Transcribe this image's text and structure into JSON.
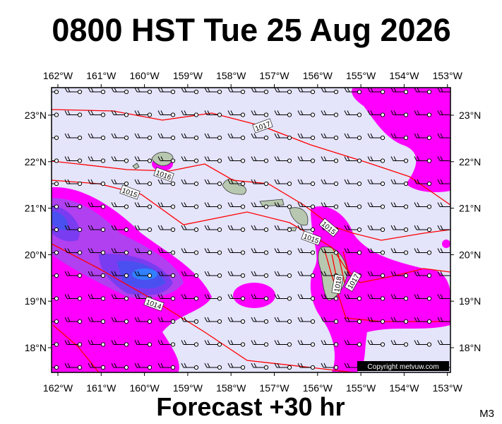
{
  "header": {
    "title": "0800 HST Tue 25 Aug 2026"
  },
  "footer": {
    "subtitle": "Forecast +30 hr",
    "code": "M3"
  },
  "map": {
    "lon_labels": [
      "162°W",
      "161°W",
      "160°W",
      "159°W",
      "158°W",
      "157°W",
      "156°W",
      "155°W",
      "154°W",
      "153°W"
    ],
    "lat_labels": [
      "23°N",
      "22°N",
      "21°N",
      "20°N",
      "19°N",
      "18°N"
    ],
    "isobar_labels": [
      "1017",
      "1016",
      "1015",
      "1015",
      "1015",
      "1018",
      "1017",
      "1014"
    ],
    "copyright": "Copyright metvuw.com"
  }
}
